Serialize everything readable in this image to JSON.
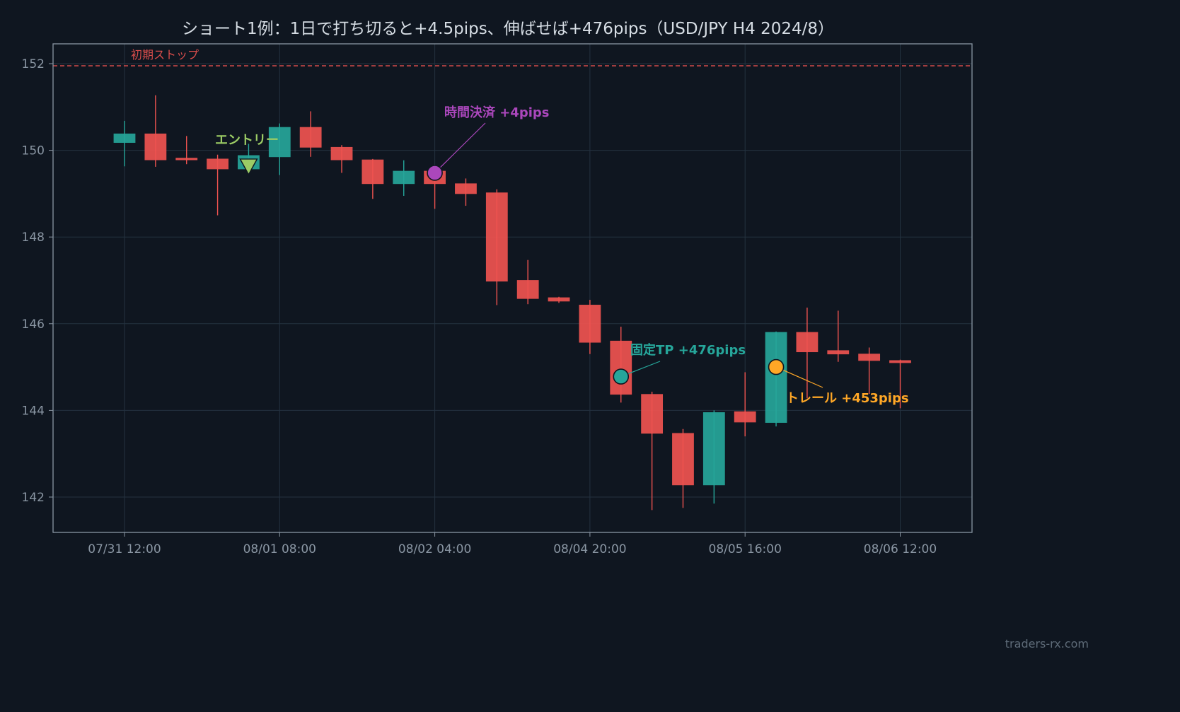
{
  "chart_data": {
    "type": "candlestick",
    "title": "ショート1例：1日で打ち切ると+4.5pips、伸ばせば+476pips（USD/JPY H4 2024/8）",
    "xlabel": "",
    "ylabel": "",
    "ylim": [
      141.2,
      152.5
    ],
    "y_ticks": [
      142,
      144,
      146,
      148,
      150,
      152
    ],
    "x_ticks": [
      {
        "index": 0,
        "label": "07/31 12:00"
      },
      {
        "index": 5,
        "label": "08/01 08:00"
      },
      {
        "index": 10,
        "label": "08/02 04:00"
      },
      {
        "index": 15,
        "label": "08/04 20:00"
      },
      {
        "index": 20,
        "label": "08/05 16:00"
      },
      {
        "index": 25,
        "label": "08/06 12:00"
      }
    ],
    "grid": true,
    "colors": {
      "up": "#26a69a",
      "down": "#ef5350",
      "background": "#0f1620",
      "grid": "#243240"
    },
    "candles": [
      {
        "o": 150.18,
        "h": 150.68,
        "l": 149.63,
        "c": 150.38
      },
      {
        "o": 150.38,
        "h": 151.27,
        "l": 149.62,
        "c": 149.78
      },
      {
        "o": 149.82,
        "h": 150.33,
        "l": 149.68,
        "c": 149.78
      },
      {
        "o": 149.8,
        "h": 149.9,
        "l": 148.5,
        "c": 149.57
      },
      {
        "o": 149.57,
        "h": 150.15,
        "l": 149.45,
        "c": 149.88
      },
      {
        "o": 149.85,
        "h": 150.62,
        "l": 149.43,
        "c": 150.53
      },
      {
        "o": 150.53,
        "h": 150.9,
        "l": 149.85,
        "c": 150.07
      },
      {
        "o": 150.07,
        "h": 150.12,
        "l": 149.48,
        "c": 149.78
      },
      {
        "o": 149.78,
        "h": 149.8,
        "l": 148.88,
        "c": 149.23
      },
      {
        "o": 149.23,
        "h": 149.77,
        "l": 148.95,
        "c": 149.52
      },
      {
        "o": 149.52,
        "h": 149.55,
        "l": 148.65,
        "c": 149.23
      },
      {
        "o": 149.23,
        "h": 149.35,
        "l": 148.72,
        "c": 149.0
      },
      {
        "o": 149.02,
        "h": 149.1,
        "l": 146.43,
        "c": 146.98
      },
      {
        "o": 147.0,
        "h": 147.47,
        "l": 146.45,
        "c": 146.58
      },
      {
        "o": 146.6,
        "h": 146.62,
        "l": 146.48,
        "c": 146.52
      },
      {
        "o": 146.43,
        "h": 146.55,
        "l": 145.3,
        "c": 145.57
      },
      {
        "o": 145.6,
        "h": 145.93,
        "l": 144.18,
        "c": 144.37
      },
      {
        "o": 144.37,
        "h": 144.43,
        "l": 141.7,
        "c": 143.47
      },
      {
        "o": 143.47,
        "h": 143.57,
        "l": 141.75,
        "c": 142.28
      },
      {
        "o": 142.28,
        "h": 144.0,
        "l": 141.85,
        "c": 143.95
      },
      {
        "o": 143.97,
        "h": 144.88,
        "l": 143.4,
        "c": 143.73
      },
      {
        "o": 143.72,
        "h": 145.82,
        "l": 143.63,
        "c": 145.8
      },
      {
        "o": 145.8,
        "h": 146.37,
        "l": 144.28,
        "c": 145.35
      },
      {
        "o": 145.38,
        "h": 146.3,
        "l": 145.12,
        "c": 145.3
      },
      {
        "o": 145.3,
        "h": 145.45,
        "l": 144.38,
        "c": 145.15
      },
      {
        "o": 145.15,
        "h": 145.17,
        "l": 144.05,
        "c": 145.1
      }
    ],
    "stop_line": {
      "value": 151.95,
      "label": "初期ストップ",
      "color": "#ef5350"
    },
    "annotations": [
      {
        "id": "entry",
        "label": "エントリー",
        "index": 4,
        "value": 149.62,
        "marker": "triangle-down",
        "color": "#9ccc65"
      },
      {
        "id": "time-exit",
        "label": "時間決済 +4pips",
        "index": 10,
        "value": 149.48,
        "marker": "circle",
        "color": "#ab47bc"
      },
      {
        "id": "fixed-tp",
        "label": "固定TP +476pips",
        "index": 16,
        "value": 144.78,
        "marker": "circle",
        "color": "#26a69a"
      },
      {
        "id": "trail",
        "label": "トレール +453pips",
        "index": 21,
        "value": 145.0,
        "marker": "circle",
        "color": "#ffa726"
      }
    ]
  },
  "watermark": "traders-rx.com"
}
